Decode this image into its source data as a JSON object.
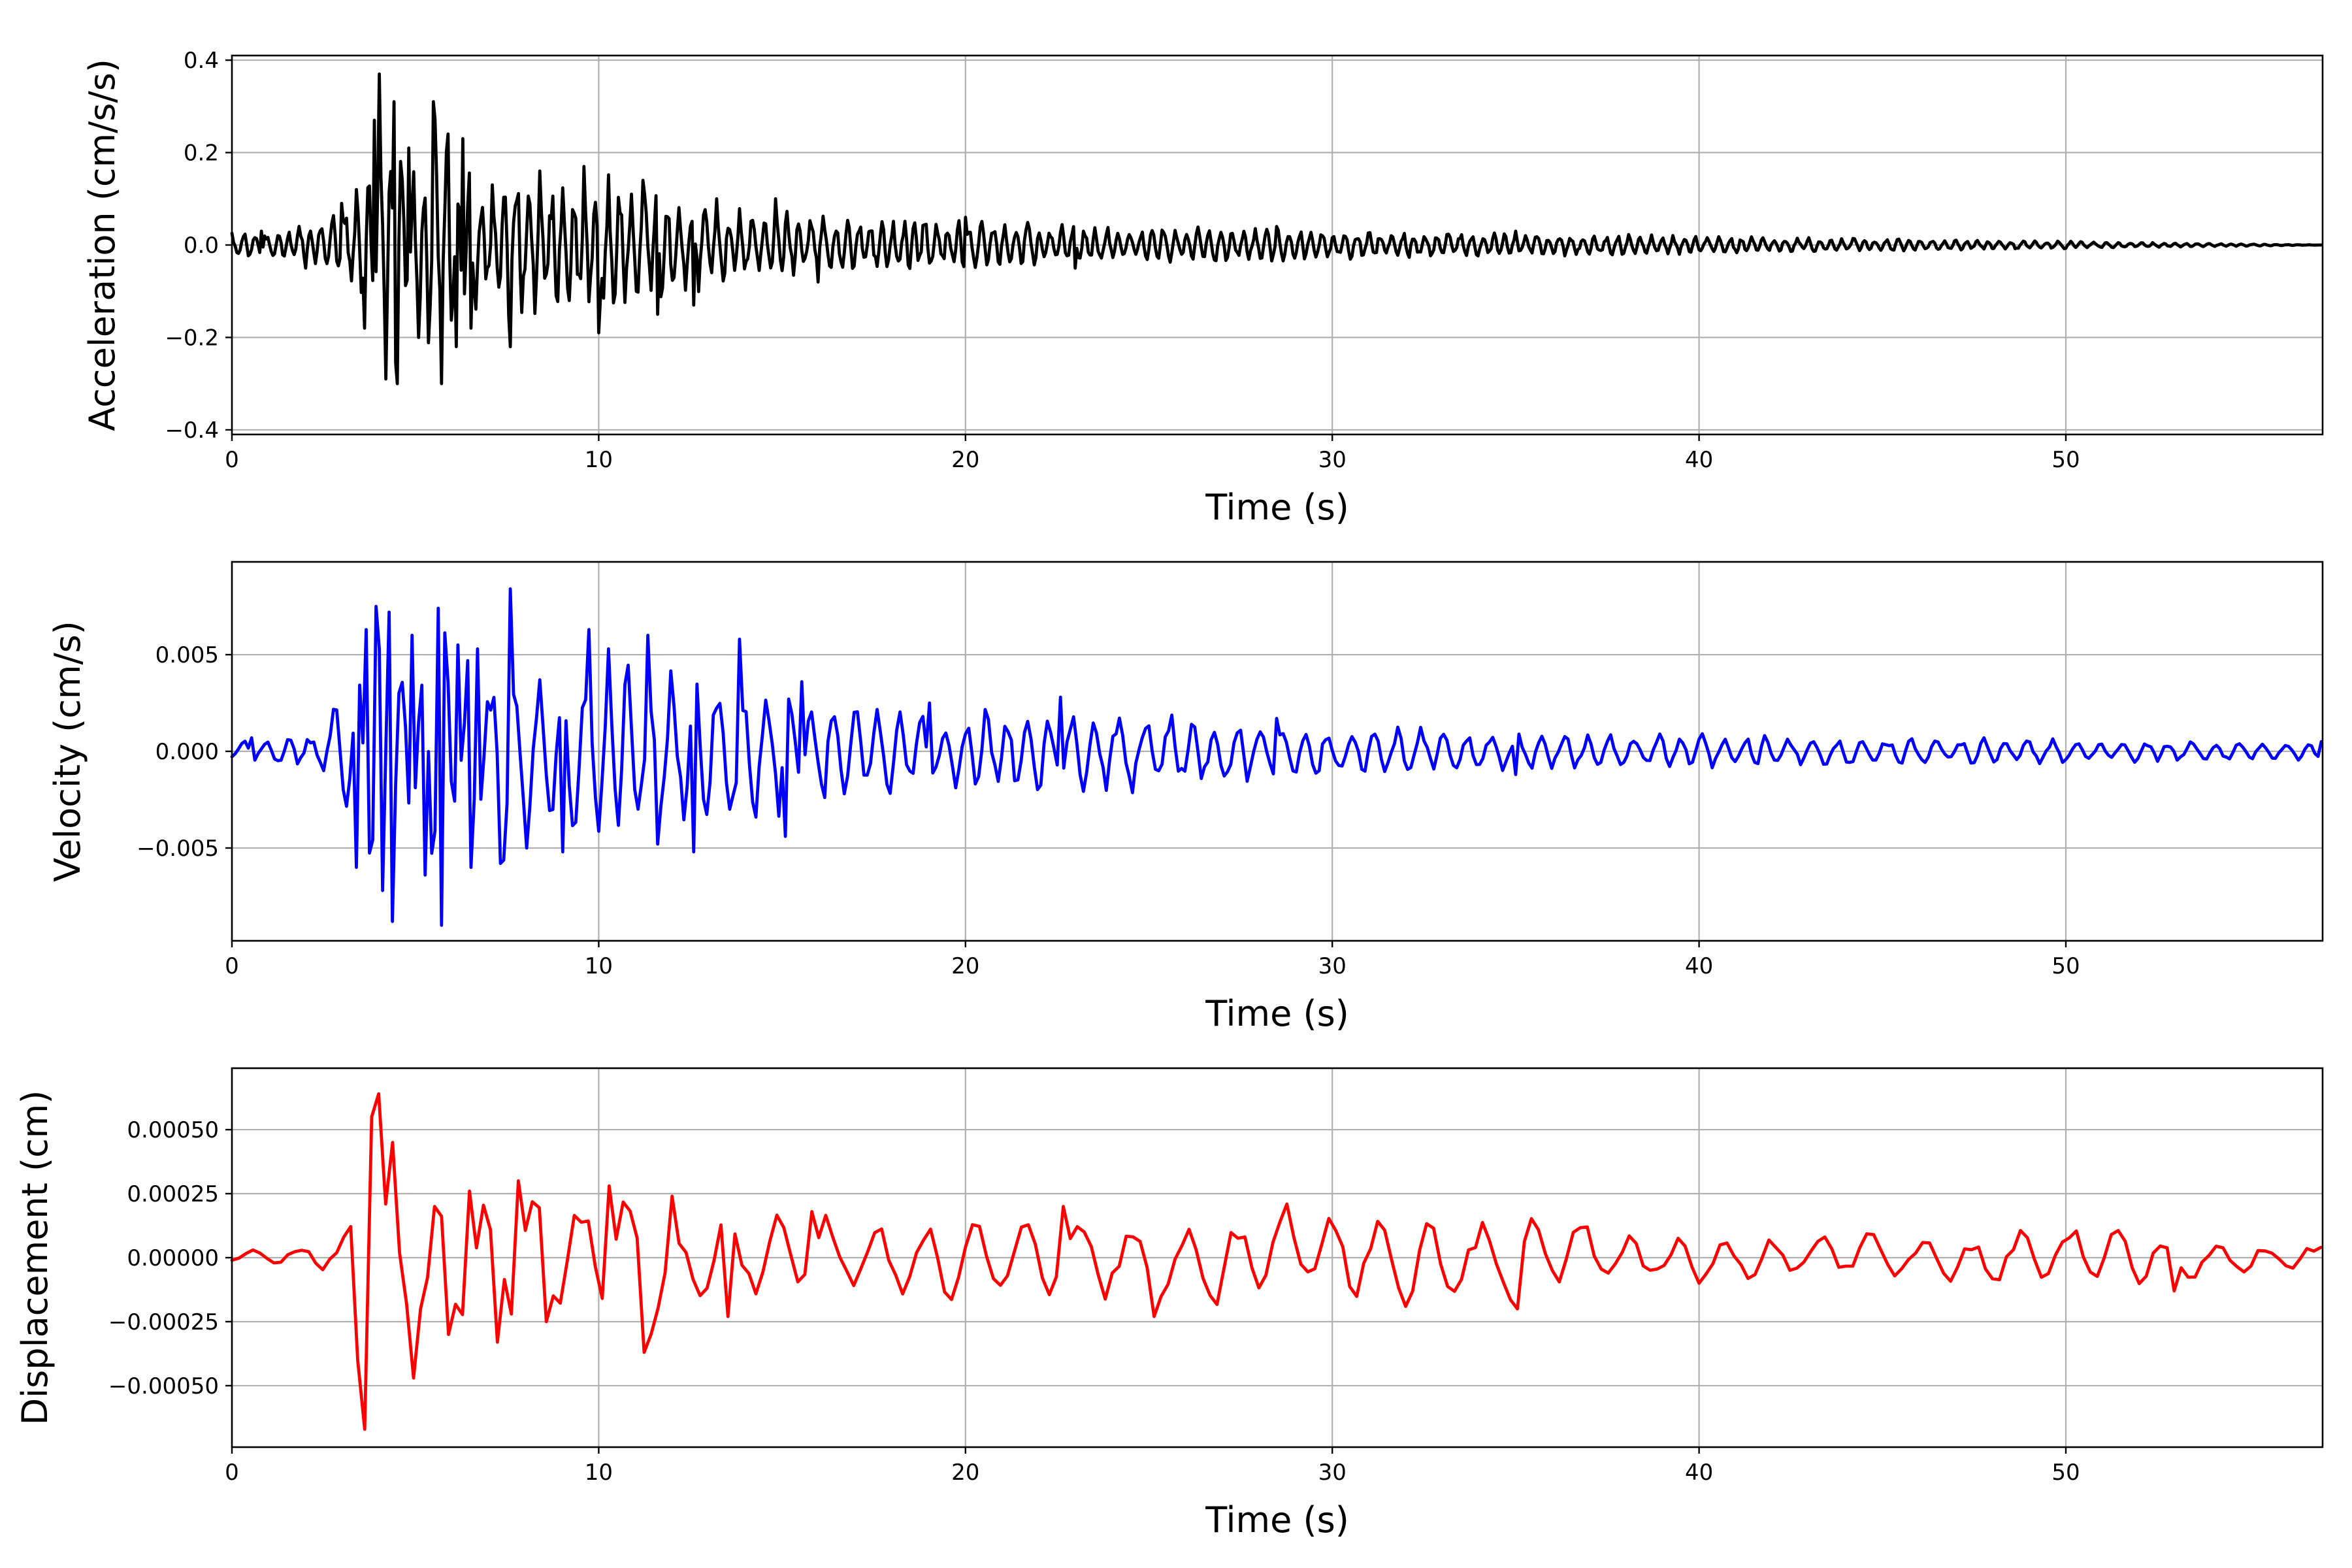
{
  "chart_data": [
    {
      "type": "line",
      "xlabel": "Time (s)",
      "ylabel": "Acceleration (cm/s/s)",
      "xlim": [
        0,
        57
      ],
      "ylim": [
        -0.41,
        0.41
      ],
      "xticks": [
        0,
        10,
        20,
        30,
        40,
        50
      ],
      "xtick_labels": [
        "0",
        "10",
        "20",
        "30",
        "40",
        "50"
      ],
      "yticks": [
        -0.4,
        -0.2,
        0.0,
        0.2,
        0.4
      ],
      "ytick_labels": [
        "−0.4",
        "−0.2",
        "0.0",
        "0.2",
        "0.4"
      ],
      "grid": true,
      "color": "#000000",
      "peaks": [
        {
          "t": 0.8,
          "v": 0.03
        },
        {
          "t": 2.0,
          "v": -0.05
        },
        {
          "t": 3.0,
          "v": 0.09
        },
        {
          "t": 3.4,
          "v": 0.12
        },
        {
          "t": 3.6,
          "v": -0.18
        },
        {
          "t": 3.9,
          "v": 0.27
        },
        {
          "t": 4.0,
          "v": 0.37
        },
        {
          "t": 4.2,
          "v": -0.29
        },
        {
          "t": 4.4,
          "v": 0.31
        },
        {
          "t": 4.5,
          "v": -0.3
        },
        {
          "t": 4.8,
          "v": 0.21
        },
        {
          "t": 5.1,
          "v": -0.2
        },
        {
          "t": 5.5,
          "v": 0.31
        },
        {
          "t": 5.7,
          "v": -0.3
        },
        {
          "t": 5.9,
          "v": 0.24
        },
        {
          "t": 6.1,
          "v": -0.22
        },
        {
          "t": 6.3,
          "v": 0.23
        },
        {
          "t": 6.5,
          "v": -0.18
        },
        {
          "t": 7.1,
          "v": 0.13
        },
        {
          "t": 7.6,
          "v": -0.22
        },
        {
          "t": 8.4,
          "v": 0.16
        },
        {
          "t": 9.6,
          "v": 0.17
        },
        {
          "t": 10.0,
          "v": -0.19
        },
        {
          "t": 11.2,
          "v": 0.14
        },
        {
          "t": 11.6,
          "v": -0.15
        },
        {
          "t": 12.6,
          "v": -0.13
        },
        {
          "t": 13.2,
          "v": 0.1
        },
        {
          "t": 14.8,
          "v": 0.1
        },
        {
          "t": 16.0,
          "v": -0.08
        },
        {
          "t": 20.0,
          "v": 0.06
        },
        {
          "t": 23.0,
          "v": -0.05
        },
        {
          "t": 28.5,
          "v": 0.04
        },
        {
          "t": 35.0,
          "v": 0.03
        },
        {
          "t": 57.0,
          "v": 0.0
        }
      ]
    },
    {
      "type": "line",
      "xlabel": "Time (s)",
      "ylabel": "Velocity (cm/s)",
      "xlim": [
        0,
        57
      ],
      "ylim": [
        -0.0098,
        0.0098
      ],
      "xticks": [
        0,
        10,
        20,
        30,
        40,
        50
      ],
      "xtick_labels": [
        "0",
        "10",
        "20",
        "30",
        "40",
        "50"
      ],
      "yticks": [
        -0.005,
        0.0,
        0.005
      ],
      "ytick_labels": [
        "−0.005",
        "0.000",
        "0.005"
      ],
      "grid": true,
      "color": "#0000ff",
      "peaks": [
        {
          "t": 0.5,
          "v": 0.0007
        },
        {
          "t": 2.5,
          "v": -0.001
        },
        {
          "t": 3.4,
          "v": -0.006
        },
        {
          "t": 3.7,
          "v": 0.0063
        },
        {
          "t": 3.9,
          "v": 0.0075
        },
        {
          "t": 4.1,
          "v": -0.0072
        },
        {
          "t": 4.3,
          "v": 0.0072
        },
        {
          "t": 4.4,
          "v": -0.0088
        },
        {
          "t": 4.9,
          "v": 0.006
        },
        {
          "t": 5.3,
          "v": -0.0064
        },
        {
          "t": 5.6,
          "v": 0.0074
        },
        {
          "t": 5.7,
          "v": -0.009
        },
        {
          "t": 6.2,
          "v": 0.0055
        },
        {
          "t": 6.5,
          "v": -0.006
        },
        {
          "t": 6.7,
          "v": 0.0053
        },
        {
          "t": 7.3,
          "v": -0.0058
        },
        {
          "t": 7.6,
          "v": 0.0084
        },
        {
          "t": 8.0,
          "v": -0.005
        },
        {
          "t": 9.0,
          "v": -0.0052
        },
        {
          "t": 9.7,
          "v": 0.0063
        },
        {
          "t": 10.3,
          "v": 0.0053
        },
        {
          "t": 11.3,
          "v": 0.006
        },
        {
          "t": 11.6,
          "v": -0.0048
        },
        {
          "t": 12.6,
          "v": -0.0052
        },
        {
          "t": 13.8,
          "v": 0.0058
        },
        {
          "t": 14.3,
          "v": -0.0034
        },
        {
          "t": 15.1,
          "v": -0.0044
        },
        {
          "t": 15.5,
          "v": 0.0036
        },
        {
          "t": 19.0,
          "v": 0.0025
        },
        {
          "t": 22.6,
          "v": 0.0028
        },
        {
          "t": 28.5,
          "v": 0.0017
        },
        {
          "t": 35.0,
          "v": -0.0012
        },
        {
          "t": 57.0,
          "v": 0.0005
        }
      ]
    },
    {
      "type": "line",
      "xlabel": "Time (s)",
      "ylabel": "Displacement (cm)",
      "xlim": [
        0,
        57
      ],
      "ylim": [
        -0.00074,
        0.00074
      ],
      "xticks": [
        0,
        10,
        20,
        30,
        40,
        50
      ],
      "xtick_labels": [
        "0",
        "10",
        "20",
        "30",
        "40",
        "50"
      ],
      "yticks": [
        -0.0005,
        -0.00025,
        0.0,
        0.00025,
        0.0005
      ],
      "ytick_labels": [
        "−0.00050",
        "−0.00025",
        "0.00000",
        "0.00025",
        "0.00050"
      ],
      "grid": true,
      "color": "#ff0000",
      "peaks": [
        {
          "t": 0.0,
          "v": -1e-05
        },
        {
          "t": 0.5,
          "v": 3e-05
        },
        {
          "t": 3.0,
          "v": 8e-05
        },
        {
          "t": 3.4,
          "v": -0.0004
        },
        {
          "t": 3.6,
          "v": -0.00067
        },
        {
          "t": 3.8,
          "v": 0.00055
        },
        {
          "t": 4.0,
          "v": 0.00064
        },
        {
          "t": 4.3,
          "v": 0.00045
        },
        {
          "t": 4.7,
          "v": -0.00018
        },
        {
          "t": 4.9,
          "v": -0.00047
        },
        {
          "t": 5.5,
          "v": 0.0002
        },
        {
          "t": 6.0,
          "v": -0.0003
        },
        {
          "t": 6.4,
          "v": 0.00026
        },
        {
          "t": 7.2,
          "v": -0.00033
        },
        {
          "t": 7.8,
          "v": 0.0003
        },
        {
          "t": 8.5,
          "v": -0.00025
        },
        {
          "t": 10.3,
          "v": 0.00028
        },
        {
          "t": 11.2,
          "v": -0.00037
        },
        {
          "t": 12.0,
          "v": 0.00024
        },
        {
          "t": 13.5,
          "v": -0.00023
        },
        {
          "t": 15.8,
          "v": 0.00018
        },
        {
          "t": 22.6,
          "v": 0.0002
        },
        {
          "t": 25.2,
          "v": -0.00023
        },
        {
          "t": 35.0,
          "v": -0.0002
        },
        {
          "t": 37.0,
          "v": 0.00012
        },
        {
          "t": 40.0,
          "v": -0.0001
        },
        {
          "t": 53.0,
          "v": -0.00013
        },
        {
          "t": 57.0,
          "v": 4e-05
        }
      ]
    }
  ]
}
